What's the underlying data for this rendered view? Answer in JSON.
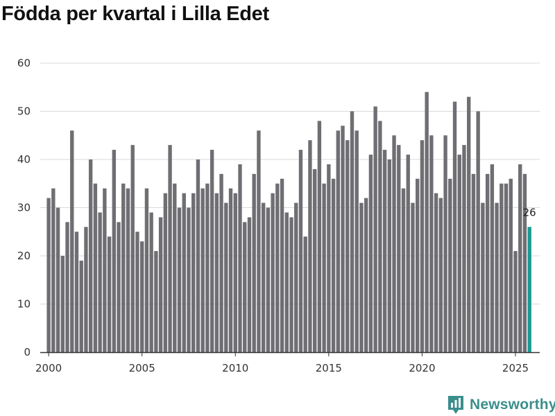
{
  "chart_data": {
    "type": "bar",
    "title": "Födda per kvartal i Lilla Edet",
    "xlabel": "",
    "ylabel": "",
    "x_start": 2000.0,
    "x_step": 0.25,
    "values": [
      32,
      34,
      30,
      20,
      27,
      46,
      25,
      19,
      26,
      40,
      35,
      29,
      34,
      24,
      42,
      27,
      35,
      34,
      43,
      25,
      23,
      34,
      29,
      21,
      28,
      33,
      43,
      35,
      30,
      33,
      30,
      33,
      40,
      34,
      35,
      42,
      33,
      37,
      31,
      34,
      33,
      39,
      27,
      28,
      37,
      46,
      31,
      30,
      33,
      35,
      36,
      29,
      28,
      31,
      42,
      24,
      44,
      38,
      48,
      35,
      39,
      36,
      46,
      47,
      44,
      50,
      46,
      31,
      32,
      41,
      51,
      48,
      42,
      40,
      45,
      43,
      34,
      41,
      31,
      36,
      44,
      54,
      45,
      33,
      32,
      45,
      36,
      52,
      41,
      43,
      53,
      37,
      50,
      31,
      37,
      39,
      31,
      35,
      35,
      36,
      21,
      39,
      37,
      26
    ],
    "ylim": [
      0,
      60
    ],
    "yticks": [
      "0",
      "10",
      "20",
      "30",
      "40",
      "50",
      "60"
    ],
    "xticks": [
      "2000",
      "2005",
      "2010",
      "2015",
      "2020",
      "2025"
    ],
    "highlight_last": true,
    "last_label": "26",
    "colors": {
      "bar": "#6f6e73",
      "highlight": "#1a9a93",
      "grid": "#d9d9d9",
      "axis": "#333333"
    }
  },
  "logo": {
    "text": "Newsworthy",
    "icon": "bar-chart-bubble-icon",
    "color": "#3a8f8c"
  }
}
